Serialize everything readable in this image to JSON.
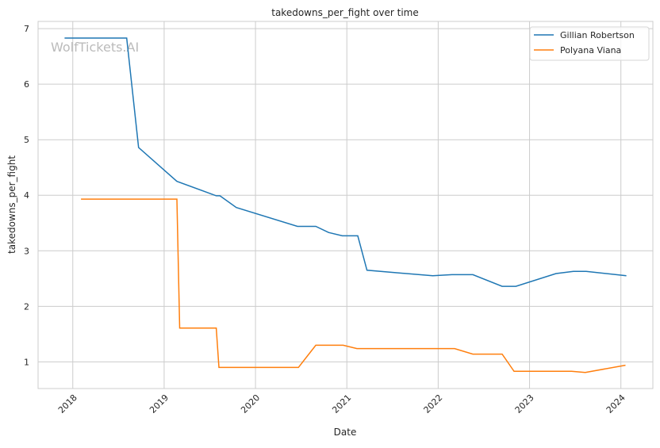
{
  "chart_data": {
    "type": "line",
    "title": "takedowns_per_fight over time",
    "xlabel": "Date",
    "ylabel": "takedowns_per_fight",
    "xlim": [
      2017.62,
      2024.35
    ],
    "ylim": [
      0.52,
      7.13
    ],
    "xticks": [
      2018,
      2019,
      2020,
      2021,
      2022,
      2023,
      2024
    ],
    "xtick_labels": [
      "2018",
      "2019",
      "2020",
      "2021",
      "2022",
      "2023",
      "2024"
    ],
    "yticks": [
      1,
      2,
      3,
      4,
      5,
      6,
      7
    ],
    "ytick_labels": [
      "1",
      "2",
      "3",
      "4",
      "5",
      "6",
      "7"
    ],
    "grid": true,
    "legend_position": "top-right",
    "watermark": "WolfTickets.AI",
    "series": [
      {
        "name": "Gillian Robertson",
        "color": "#1f77b4",
        "x": [
          2017.91,
          2018.59,
          2018.72,
          2019.14,
          2019.57,
          2019.61,
          2019.79,
          2020.46,
          2020.66,
          2020.8,
          2020.95,
          2021.12,
          2021.22,
          2021.94,
          2022.15,
          2022.38,
          2022.7,
          2022.85,
          2023.29,
          2023.48,
          2023.62,
          2024.06
        ],
        "y": [
          6.83,
          6.83,
          4.86,
          4.25,
          3.99,
          3.99,
          3.78,
          3.44,
          3.44,
          3.33,
          3.27,
          3.27,
          2.65,
          2.55,
          2.57,
          2.57,
          2.36,
          2.36,
          2.59,
          2.63,
          2.63,
          2.55
        ]
      },
      {
        "name": "Polyana Viana",
        "color": "#ff7f0e",
        "x": [
          2018.09,
          2019.14,
          2019.17,
          2019.57,
          2019.6,
          2020.47,
          2020.66,
          2020.96,
          2021.11,
          2022.18,
          2022.38,
          2022.7,
          2022.83,
          2023.46,
          2023.61,
          2024.05
        ],
        "y": [
          3.93,
          3.93,
          1.61,
          1.61,
          0.9,
          0.9,
          1.3,
          1.3,
          1.24,
          1.24,
          1.14,
          1.14,
          0.83,
          0.83,
          0.81,
          0.94
        ]
      }
    ]
  }
}
